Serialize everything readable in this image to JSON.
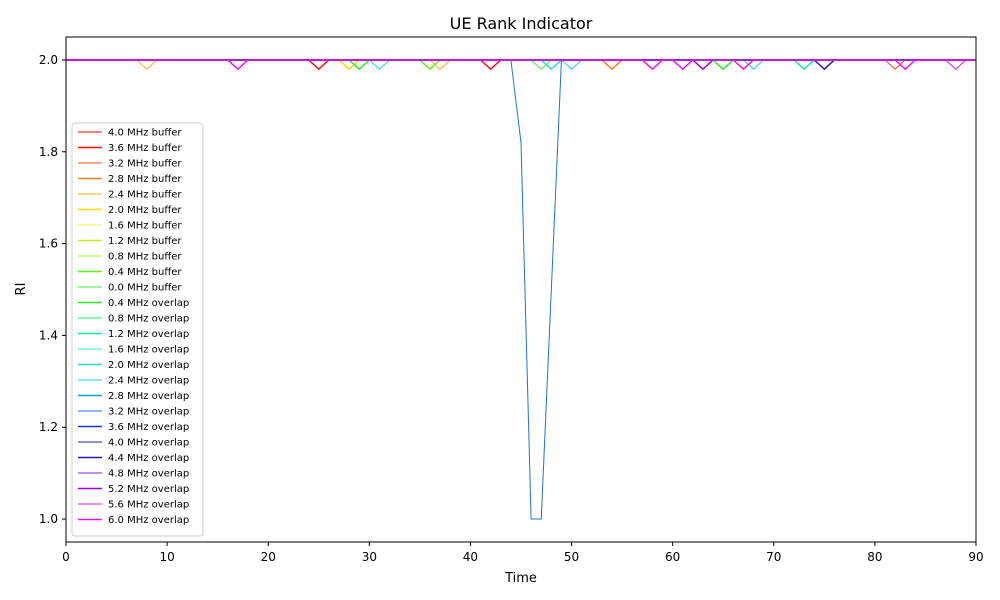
{
  "chart_data": {
    "type": "line",
    "title": "UE Rank Indicator",
    "xlabel": "Time",
    "ylabel": "RI",
    "xlim": [
      0,
      90
    ],
    "ylim": [
      0.95,
      2.05
    ],
    "xticks": [
      "0",
      "10",
      "20",
      "30",
      "40",
      "50",
      "60",
      "70",
      "80",
      "90"
    ],
    "yticks": [
      "1.0",
      "1.2",
      "1.4",
      "1.6",
      "1.8",
      "2.0"
    ],
    "grid": false,
    "legend_position": "lower left",
    "series": [
      {
        "name": "4.0 MHz buffer",
        "color": "#ff0000",
        "lw": 1,
        "x": [
          0,
          90
        ],
        "y": [
          2.0,
          2.0
        ]
      },
      {
        "name": "3.6 MHz buffer",
        "color": "#ff0d0d",
        "lw": 1.5,
        "x": [
          0,
          24,
          25,
          26,
          41,
          42,
          43,
          90
        ],
        "y": [
          2.0,
          2.0,
          1.98,
          2.0,
          2.0,
          1.98,
          2.0,
          2.0
        ]
      },
      {
        "name": "3.2 MHz buffer",
        "color": "#ff4a1f",
        "lw": 1,
        "x": [
          0,
          81,
          82,
          83,
          90
        ],
        "y": [
          2.0,
          2.0,
          1.98,
          2.0,
          2.0
        ]
      },
      {
        "name": "2.8 MHz buffer",
        "color": "#ff7a1a",
        "lw": 1.5,
        "x": [
          0,
          53,
          54,
          55,
          90
        ],
        "y": [
          2.0,
          2.0,
          1.98,
          2.0,
          2.0
        ]
      },
      {
        "name": "2.4 MHz buffer",
        "color": "#ffb020",
        "lw": 1,
        "x": [
          0,
          7,
          8,
          9,
          36,
          37,
          38,
          90
        ],
        "y": [
          2.0,
          2.0,
          1.98,
          2.0,
          2.0,
          1.98,
          2.0,
          2.0
        ]
      },
      {
        "name": "2.0 MHz buffer",
        "color": "#ffd700",
        "lw": 1.5,
        "x": [
          0,
          27,
          28,
          29,
          90
        ],
        "y": [
          2.0,
          2.0,
          1.98,
          2.0,
          2.0
        ]
      },
      {
        "name": "1.6 MHz buffer",
        "color": "#f2f23c",
        "lw": 1,
        "x": [
          0,
          90
        ],
        "y": [
          2.0,
          2.0
        ]
      },
      {
        "name": "1.2 MHz buffer",
        "color": "#c8f01e",
        "lw": 1.5,
        "x": [
          0,
          90
        ],
        "y": [
          2.0,
          2.0
        ]
      },
      {
        "name": "0.8 MHz buffer",
        "color": "#a0f03c",
        "lw": 1,
        "x": [
          0,
          90
        ],
        "y": [
          2.0,
          2.0
        ]
      },
      {
        "name": "0.4 MHz buffer",
        "color": "#66ee11",
        "lw": 1.5,
        "x": [
          0,
          35,
          36,
          37,
          90
        ],
        "y": [
          2.0,
          2.0,
          1.98,
          2.0,
          2.0
        ]
      },
      {
        "name": "0.0 MHz buffer",
        "color": "#44ee33",
        "lw": 1,
        "x": [
          0,
          46,
          47,
          48,
          90
        ],
        "y": [
          2.0,
          2.0,
          1.98,
          2.0,
          2.0
        ]
      },
      {
        "name": "0.4 MHz overlap",
        "color": "#22ee22",
        "lw": 1.5,
        "x": [
          0,
          28,
          29,
          30,
          64,
          65,
          66,
          90
        ],
        "y": [
          2.0,
          2.0,
          1.98,
          2.0,
          2.0,
          1.98,
          2.0,
          2.0
        ]
      },
      {
        "name": "0.8 MHz overlap",
        "color": "#22ee66",
        "lw": 1,
        "x": [
          0,
          90
        ],
        "y": [
          2.0,
          2.0
        ]
      },
      {
        "name": "1.2 MHz overlap",
        "color": "#11ee99",
        "lw": 1.5,
        "x": [
          0,
          72,
          73,
          74,
          90
        ],
        "y": [
          2.0,
          2.0,
          1.98,
          2.0,
          2.0
        ]
      },
      {
        "name": "1.6 MHz overlap",
        "color": "#33eecc",
        "lw": 1,
        "x": [
          0,
          90
        ],
        "y": [
          2.0,
          2.0
        ]
      },
      {
        "name": "2.0 MHz overlap",
        "color": "#22dddd",
        "lw": 1.5,
        "x": [
          0,
          47,
          48,
          49,
          90
        ],
        "y": [
          2.0,
          2.0,
          1.98,
          2.0,
          2.0
        ]
      },
      {
        "name": "2.4 MHz overlap",
        "color": "#22ccee",
        "lw": 1,
        "x": [
          0,
          30,
          31,
          32,
          49,
          50,
          51,
          67,
          68,
          69,
          90
        ],
        "y": [
          2.0,
          2.0,
          1.98,
          2.0,
          2.0,
          1.98,
          2.0,
          2.0,
          1.98,
          2.0,
          2.0
        ]
      },
      {
        "name": "2.8 MHz overlap",
        "color": "#1199ee",
        "lw": 1.5,
        "x": [
          0,
          90
        ],
        "y": [
          2.0,
          2.0
        ]
      },
      {
        "name": "3.2 MHz overlap",
        "color": "#1f6fdd",
        "lw": 1,
        "x": [
          0,
          44,
          45,
          46,
          47,
          48,
          49,
          90
        ],
        "y": [
          2.0,
          2.0,
          1.82,
          1.0,
          1.0,
          1.5,
          2.0,
          2.0
        ]
      },
      {
        "name": "3.6 MHz overlap",
        "color": "#1133ee",
        "lw": 1.5,
        "x": [
          0,
          90
        ],
        "y": [
          2.0,
          2.0
        ]
      },
      {
        "name": "4.0 MHz overlap",
        "color": "#2222cc",
        "lw": 1,
        "x": [
          0,
          90
        ],
        "y": [
          2.0,
          2.0
        ]
      },
      {
        "name": "4.4 MHz overlap",
        "color": "#3311bb",
        "lw": 1.5,
        "x": [
          0,
          74,
          75,
          76,
          90
        ],
        "y": [
          2.0,
          2.0,
          1.98,
          2.0,
          2.0
        ]
      },
      {
        "name": "4.8 MHz overlap",
        "color": "#7722dd",
        "lw": 1,
        "x": [
          0,
          90
        ],
        "y": [
          2.0,
          2.0
        ]
      },
      {
        "name": "5.2 MHz overlap",
        "color": "#9900ee",
        "lw": 1.5,
        "x": [
          0,
          62,
          63,
          64,
          90
        ],
        "y": [
          2.0,
          2.0,
          1.98,
          2.0,
          2.0
        ]
      },
      {
        "name": "5.6 MHz overlap",
        "color": "#cc22ee",
        "lw": 1,
        "x": [
          0,
          87,
          88,
          89,
          90
        ],
        "y": [
          2.0,
          2.0,
          1.98,
          2.0,
          2.0
        ]
      },
      {
        "name": "6.0 MHz overlap",
        "color": "#ee11ee",
        "lw": 1.5,
        "x": [
          0,
          16,
          17,
          18,
          57,
          58,
          59,
          60,
          61,
          62,
          66,
          67,
          68,
          82,
          83,
          84,
          90
        ],
        "y": [
          2.0,
          2.0,
          1.98,
          2.0,
          2.0,
          1.98,
          2.0,
          2.0,
          1.98,
          2.0,
          2.0,
          1.98,
          2.0,
          2.0,
          1.98,
          2.0,
          2.0
        ]
      }
    ]
  }
}
